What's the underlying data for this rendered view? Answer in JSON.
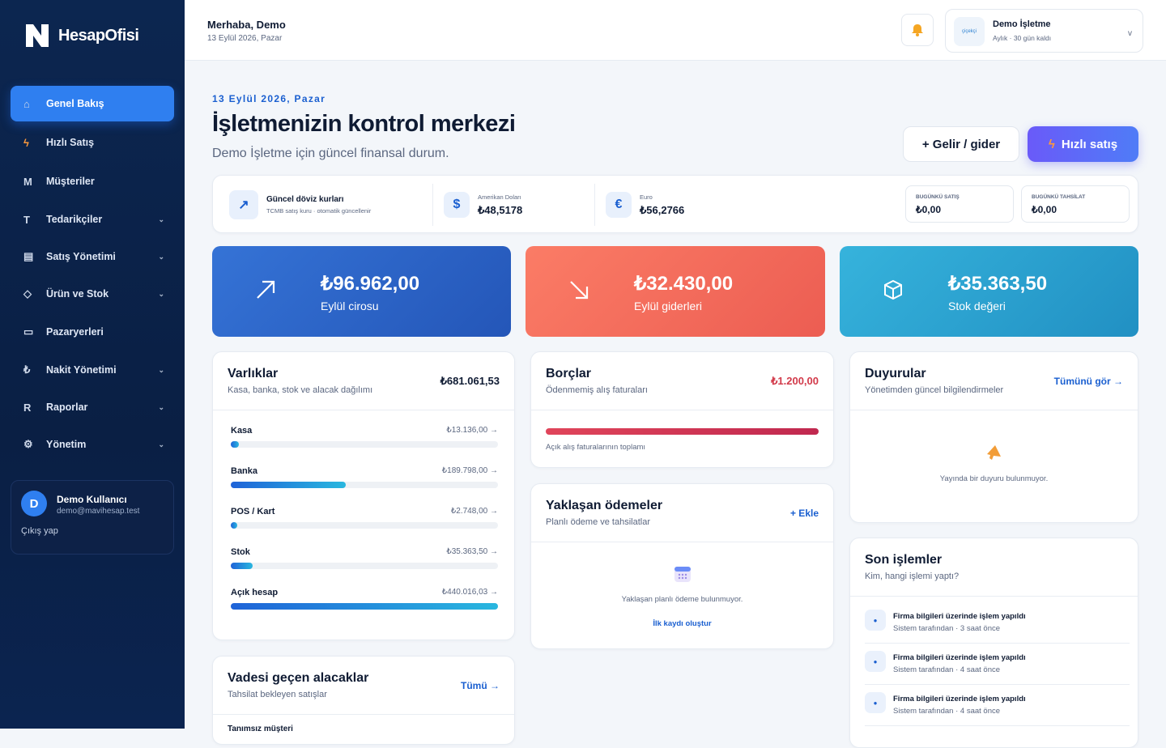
{
  "sidebar": {
    "logo": "HesapOfisi",
    "nav": [
      {
        "label": "Genel Bakış"
      },
      {
        "label": "Hızlı Satış"
      },
      {
        "icon": "M",
        "label": "Müşteriler"
      },
      {
        "icon": "T",
        "label": "Tedarikçiler"
      },
      {
        "label": "Satış Yönetimi"
      },
      {
        "label": "Ürün ve Stok"
      },
      {
        "label": "Pazaryerleri"
      },
      {
        "icon": "₺",
        "label": "Nakit Yönetimi"
      },
      {
        "icon": "R",
        "label": "Raporlar"
      },
      {
        "label": "Yönetim"
      }
    ],
    "user": {
      "initial": "D",
      "name": "Demo Kullanıcı",
      "email": "demo@mavihesap.test",
      "logout": "Çıkış yap"
    }
  },
  "header": {
    "greeting": "Merhaba, Demo",
    "date": "13 Eylül 2026, Pazar",
    "business": {
      "logo": "çiçekçi",
      "name": "Demo İşletme",
      "plan": "Aylık · 30 gün kaldı",
      "toggle": "v"
    }
  },
  "hero": {
    "eyebrow": "13 Eylül 2026, Pazar",
    "title": "İşletmenizin kontrol merkezi",
    "subtitle": "Demo İşletme için güncel finansal durum.",
    "buttons": [
      "+ Gelir / gider",
      "Hızlı satış"
    ]
  },
  "rates": {
    "title": "Güncel döviz kurları",
    "note": "TCMB satış kuru · otomatik güncellenir",
    "currencies": [
      {
        "symbol": "$",
        "name": "Amerikan Doları",
        "rate": "₺48,5178"
      },
      {
        "symbol": "€",
        "name": "Euro",
        "rate": "₺56,2766"
      }
    ],
    "today": [
      {
        "label": "BUGÜNKÜ SATIŞ",
        "value": "₺0,00"
      },
      {
        "label": "BUGÜNKÜ TAHSİLAT",
        "value": "₺0,00"
      }
    ]
  },
  "kpis": [
    {
      "value": "₺96.962,00",
      "label": "Eylül cirosu"
    },
    {
      "value": "₺32.430,00",
      "label": "Eylül giderleri"
    },
    {
      "value": "₺35.363,50",
      "label": "Stok değeri"
    }
  ],
  "assets": {
    "title": "Varlıklar",
    "subtitle": "Kasa, banka, stok ve alacak dağılımı",
    "total": "₺681.061,53",
    "items": [
      {
        "name": "Kasa",
        "value": 13136,
        "label": "₺13.136,00 →"
      },
      {
        "name": "Banka",
        "value": 189798,
        "label": "₺189.798,00 →"
      },
      {
        "name": "POS / Kart",
        "value": 2748,
        "label": "₺2.748,00 →"
      },
      {
        "name": "Stok",
        "value": 35363.5,
        "label": "₺35.363,50 →"
      },
      {
        "name": "Açık hesap",
        "value": 440016.03,
        "label": "₺440.016,03 →"
      }
    ]
  },
  "debts": {
    "title": "Borçlar",
    "subtitle": "Ödenmemiş alış faturaları",
    "total": "₺1.200,00",
    "note": "Açık alış faturalarının toplamı"
  },
  "upcoming": {
    "title": "Yaklaşan ödemeler",
    "subtitle": "Planlı ödeme ve tahsilatlar",
    "action": "+ Ekle",
    "empty": "Yaklaşan planlı ödeme bulunmuyor.",
    "cta": "İlk kaydı oluştur"
  },
  "overdue": {
    "title": "Vadesi geçen alacaklar",
    "subtitle": "Tahsilat bekleyen satışlar",
    "action": "Tümü →",
    "rows": [
      "Tanımsız müşteri"
    ]
  },
  "announcements": {
    "title": "Duyurular",
    "subtitle": "Yönetimden güncel bilgilendirmeler",
    "action": "Tümünü gör →",
    "empty": "Yayında bir duyuru bulunmuyor."
  },
  "activity": {
    "title": "Son işlemler",
    "subtitle": "Kim, hangi işlemi yaptı?",
    "items": [
      {
        "text": "Firma bilgileri üzerinde işlem yapıldı",
        "meta": "Sistem tarafından · 3 saat önce"
      },
      {
        "text": "Firma bilgileri üzerinde işlem yapıldı",
        "meta": "Sistem tarafından · 4 saat önce"
      },
      {
        "text": "Firma bilgileri üzerinde işlem yapıldı",
        "meta": "Sistem tarafından · 4 saat önce"
      }
    ]
  }
}
